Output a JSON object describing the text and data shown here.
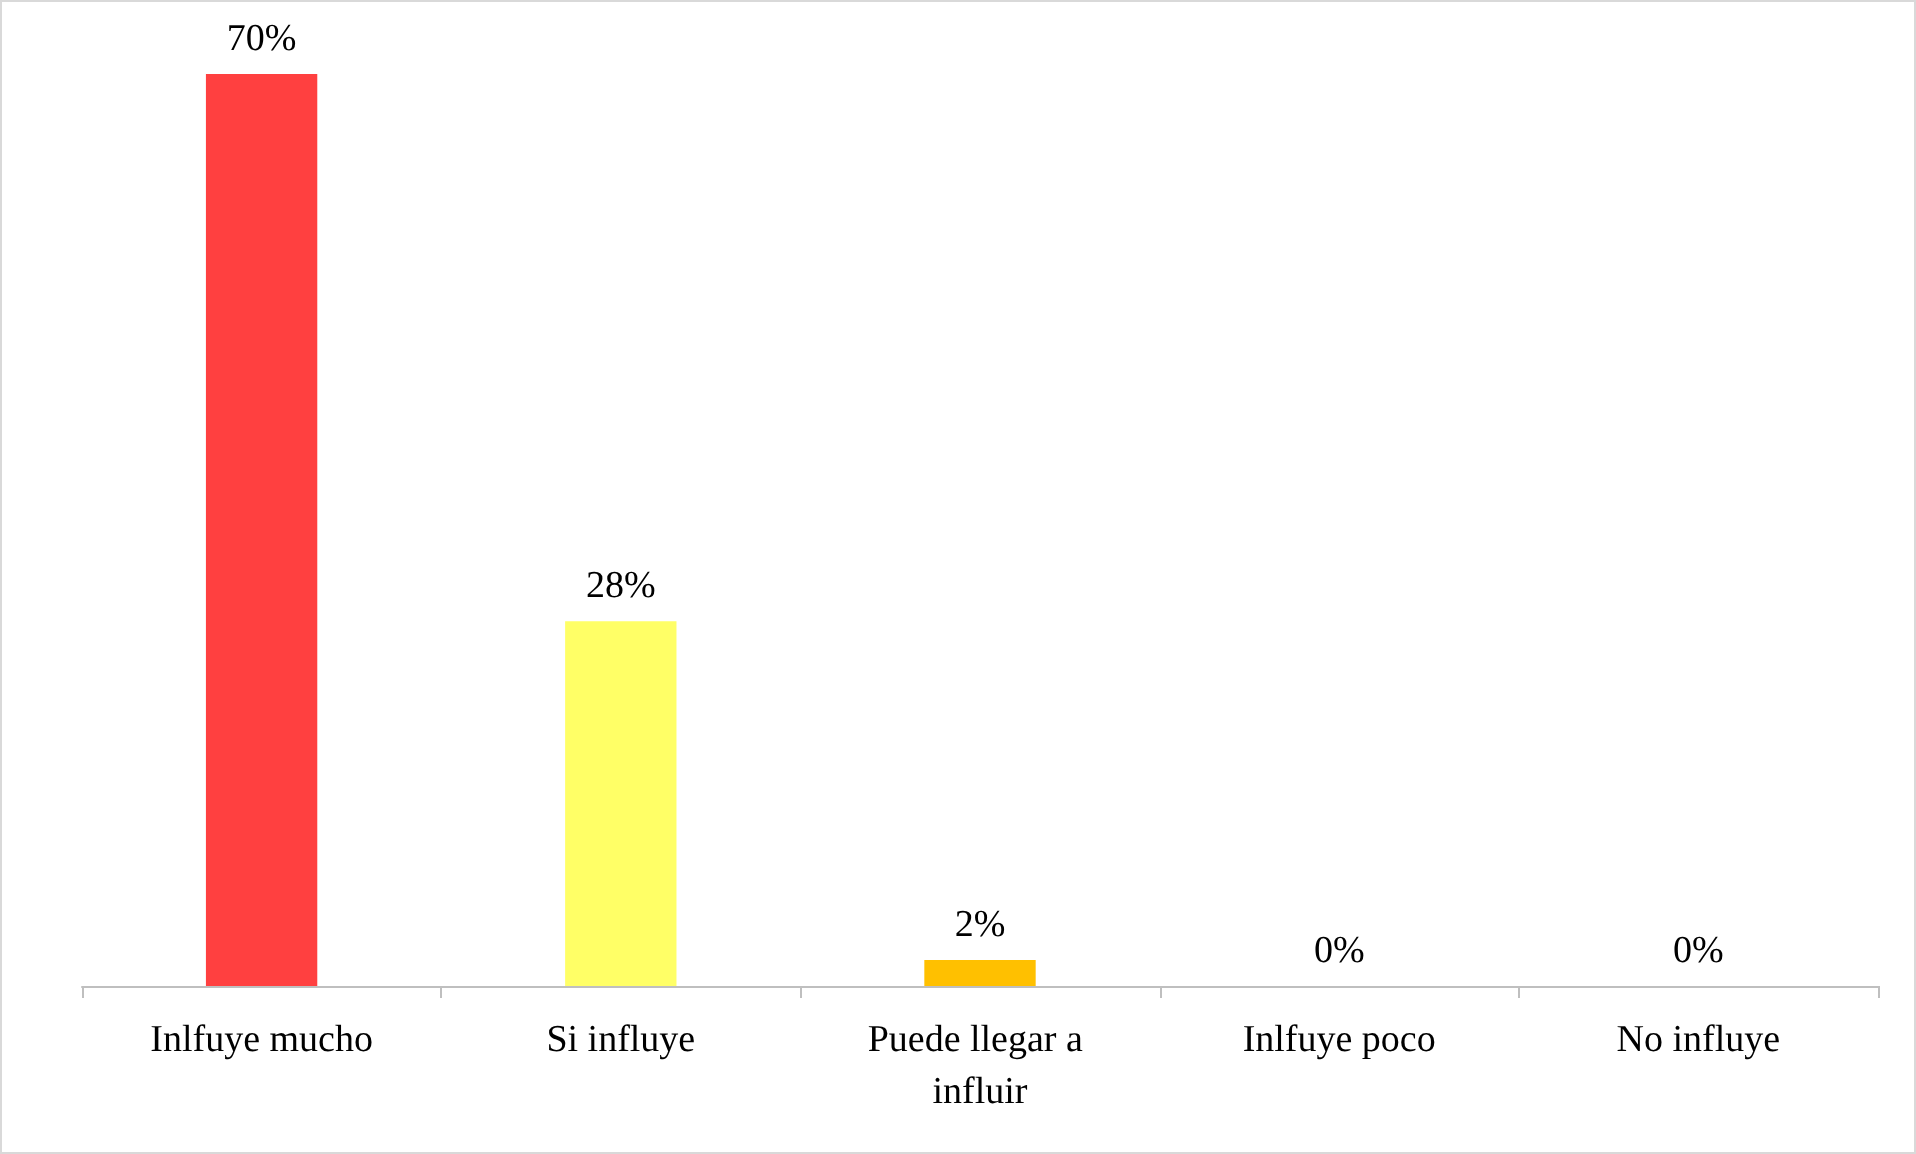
{
  "chart_data": {
    "type": "bar",
    "categories": [
      "Inlfuye mucho",
      "Si influye",
      "Puede llegar a influir",
      "Inlfuye poco",
      "No influye"
    ],
    "values": [
      70,
      28,
      2,
      0,
      0
    ],
    "colors": [
      "#ff4040",
      "#ffff66",
      "#ffc000",
      "#92d050",
      "#00b0f0"
    ],
    "value_labels": [
      "70%",
      "28%",
      "2%",
      "0%",
      "0%"
    ]
  }
}
